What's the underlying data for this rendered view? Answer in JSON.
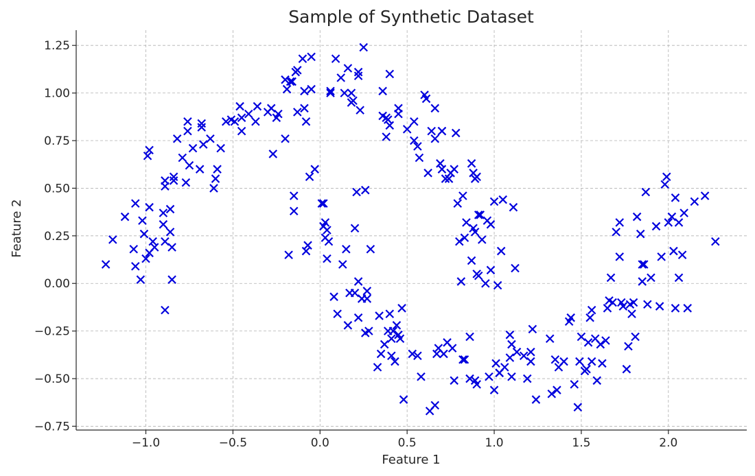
{
  "chart_data": {
    "type": "scatter",
    "title": "Sample of Synthetic Dataset",
    "xlabel": "Feature 1",
    "ylabel": "Feature 2",
    "xlim": [
      -1.4,
      2.45
    ],
    "ylim": [
      -0.77,
      1.33
    ],
    "x_ticks": [
      -1.0,
      -0.5,
      0.0,
      0.5,
      1.0,
      1.5,
      2.0
    ],
    "x_tick_labels": [
      "−1.0",
      "−0.5",
      "0.0",
      "0.5",
      "1.0",
      "1.5",
      "2.0"
    ],
    "y_ticks": [
      -0.75,
      -0.5,
      -0.25,
      0.0,
      0.25,
      0.5,
      0.75,
      1.0,
      1.25
    ],
    "y_tick_labels": [
      "−0.75",
      "−0.50",
      "−0.25",
      "0.00",
      "0.25",
      "0.50",
      "0.75",
      "1.00",
      "1.25"
    ],
    "grid": true,
    "marker": "x",
    "color": "#0000dd",
    "points": [
      [
        -1.23,
        0.1
      ],
      [
        -1.19,
        0.23
      ],
      [
        -1.12,
        0.35
      ],
      [
        -1.06,
        0.42
      ],
      [
        -1.07,
        0.18
      ],
      [
        -1.06,
        0.09
      ],
      [
        -1.03,
        0.02
      ],
      [
        -1.02,
        0.33
      ],
      [
        -1.01,
        0.26
      ],
      [
        -1.0,
        0.13
      ],
      [
        -0.99,
        0.67
      ],
      [
        -0.98,
        0.7
      ],
      [
        -0.98,
        0.4
      ],
      [
        -0.98,
        0.16
      ],
      [
        -0.96,
        0.22
      ],
      [
        -0.95,
        0.19
      ],
      [
        -0.9,
        0.37
      ],
      [
        -0.9,
        0.31
      ],
      [
        -0.89,
        0.51
      ],
      [
        -0.89,
        0.54
      ],
      [
        -0.89,
        0.22
      ],
      [
        -0.89,
        -0.14
      ],
      [
        -0.86,
        0.39
      ],
      [
        -0.86,
        0.27
      ],
      [
        -0.85,
        0.19
      ],
      [
        -0.85,
        0.02
      ],
      [
        -0.84,
        0.56
      ],
      [
        -0.84,
        0.54
      ],
      [
        -0.82,
        0.76
      ],
      [
        -0.79,
        0.66
      ],
      [
        -0.77,
        0.53
      ],
      [
        -0.76,
        0.85
      ],
      [
        -0.76,
        0.8
      ],
      [
        -0.75,
        0.62
      ],
      [
        -0.73,
        0.71
      ],
      [
        -0.69,
        0.6
      ],
      [
        -0.68,
        0.84
      ],
      [
        -0.68,
        0.82
      ],
      [
        -0.67,
        0.73
      ],
      [
        -0.63,
        0.76
      ],
      [
        -0.61,
        0.5
      ],
      [
        -0.6,
        0.55
      ],
      [
        -0.59,
        0.6
      ],
      [
        -0.57,
        0.71
      ],
      [
        -0.54,
        0.85
      ],
      [
        -0.51,
        0.86
      ],
      [
        -0.49,
        0.85
      ],
      [
        -0.46,
        0.93
      ],
      [
        -0.45,
        0.8
      ],
      [
        -0.45,
        0.87
      ],
      [
        -0.41,
        0.89
      ],
      [
        -0.37,
        0.85
      ],
      [
        -0.36,
        0.93
      ],
      [
        -0.3,
        0.9
      ],
      [
        -0.28,
        0.92
      ],
      [
        -0.27,
        0.68
      ],
      [
        -0.25,
        0.87
      ],
      [
        -0.24,
        0.89
      ],
      [
        -0.2,
        0.76
      ],
      [
        -0.2,
        1.07
      ],
      [
        -0.19,
        1.02
      ],
      [
        -0.17,
        1.06
      ],
      [
        -0.16,
        1.06
      ],
      [
        -0.15,
        0.46
      ],
      [
        -0.15,
        0.38
      ],
      [
        -0.14,
        1.11
      ],
      [
        -0.13,
        1.12
      ],
      [
        -0.13,
        0.9
      ],
      [
        -0.18,
        0.15
      ],
      [
        -0.1,
        1.18
      ],
      [
        -0.09,
        0.92
      ],
      [
        -0.08,
        0.85
      ],
      [
        -0.09,
        1.01
      ],
      [
        -0.08,
        0.17
      ],
      [
        -0.07,
        0.2
      ],
      [
        -0.06,
        0.56
      ],
      [
        -0.05,
        1.19
      ],
      [
        -0.05,
        1.02
      ],
      [
        -0.03,
        0.6
      ],
      [
        0.01,
        0.42
      ],
      [
        0.02,
        0.42
      ],
      [
        0.02,
        0.3
      ],
      [
        0.03,
        0.32
      ],
      [
        0.03,
        0.24
      ],
      [
        0.04,
        0.13
      ],
      [
        0.04,
        0.28
      ],
      [
        0.05,
        0.22
      ],
      [
        0.06,
        1.0
      ],
      [
        0.06,
        1.01
      ],
      [
        0.08,
        -0.07
      ],
      [
        0.09,
        1.18
      ],
      [
        0.1,
        -0.16
      ],
      [
        0.12,
        1.08
      ],
      [
        0.13,
        0.1
      ],
      [
        0.14,
        1.0
      ],
      [
        0.15,
        0.18
      ],
      [
        0.16,
        -0.22
      ],
      [
        0.16,
        1.13
      ],
      [
        0.17,
        -0.05
      ],
      [
        0.18,
        0.95
      ],
      [
        0.18,
        1.0
      ],
      [
        0.19,
        0.96
      ],
      [
        0.2,
        0.29
      ],
      [
        0.2,
        -0.05
      ],
      [
        0.21,
        0.48
      ],
      [
        0.22,
        1.09
      ],
      [
        0.22,
        1.11
      ],
      [
        0.22,
        0.01
      ],
      [
        0.22,
        -0.18
      ],
      [
        0.23,
        0.91
      ],
      [
        0.24,
        -0.08
      ],
      [
        0.25,
        1.24
      ],
      [
        0.26,
        0.49
      ],
      [
        0.26,
        -0.26
      ],
      [
        0.27,
        -0.04
      ],
      [
        0.27,
        -0.08
      ],
      [
        0.28,
        -0.25
      ],
      [
        0.29,
        0.18
      ],
      [
        0.33,
        -0.44
      ],
      [
        0.34,
        -0.17
      ],
      [
        0.35,
        -0.37
      ],
      [
        0.36,
        1.01
      ],
      [
        0.36,
        0.88
      ],
      [
        0.37,
        -0.32
      ],
      [
        0.38,
        0.87
      ],
      [
        0.38,
        0.77
      ],
      [
        0.39,
        0.86
      ],
      [
        0.39,
        -0.25
      ],
      [
        0.4,
        0.83
      ],
      [
        0.4,
        1.1
      ],
      [
        0.4,
        -0.16
      ],
      [
        0.41,
        -0.29
      ],
      [
        0.41,
        -0.38
      ],
      [
        0.42,
        -0.25
      ],
      [
        0.43,
        -0.41
      ],
      [
        0.44,
        -0.22
      ],
      [
        0.45,
        0.92
      ],
      [
        0.45,
        0.89
      ],
      [
        0.45,
        -0.27
      ],
      [
        0.46,
        -0.29
      ],
      [
        0.47,
        -0.13
      ],
      [
        0.48,
        -0.61
      ],
      [
        0.5,
        0.81
      ],
      [
        0.53,
        -0.37
      ],
      [
        0.54,
        0.75
      ],
      [
        0.54,
        0.85
      ],
      [
        0.56,
        -0.38
      ],
      [
        0.56,
        0.72
      ],
      [
        0.57,
        0.66
      ],
      [
        0.58,
        -0.49
      ],
      [
        0.6,
        0.99
      ],
      [
        0.61,
        0.97
      ],
      [
        0.62,
        0.58
      ],
      [
        0.63,
        -0.67
      ],
      [
        0.64,
        0.8
      ],
      [
        0.66,
        0.92
      ],
      [
        0.66,
        -0.64
      ],
      [
        0.66,
        0.76
      ],
      [
        0.67,
        -0.37
      ],
      [
        0.68,
        -0.34
      ],
      [
        0.69,
        0.63
      ],
      [
        0.7,
        0.8
      ],
      [
        0.7,
        0.8
      ],
      [
        0.7,
        0.6
      ],
      [
        0.71,
        -0.37
      ],
      [
        0.72,
        0.55
      ],
      [
        0.73,
        -0.31
      ],
      [
        0.74,
        0.55
      ],
      [
        0.75,
        0.58
      ],
      [
        0.76,
        -0.34
      ],
      [
        0.77,
        0.6
      ],
      [
        0.77,
        -0.51
      ],
      [
        0.78,
        0.79
      ],
      [
        0.79,
        0.42
      ],
      [
        0.8,
        0.22
      ],
      [
        0.81,
        0.01
      ],
      [
        0.82,
        0.46
      ],
      [
        0.82,
        -0.4
      ],
      [
        0.83,
        0.24
      ],
      [
        0.83,
        -0.4
      ],
      [
        0.84,
        0.32
      ],
      [
        0.86,
        -0.28
      ],
      [
        0.86,
        -0.5
      ],
      [
        0.87,
        0.12
      ],
      [
        0.87,
        0.63
      ],
      [
        0.88,
        0.29
      ],
      [
        0.88,
        0.58
      ],
      [
        0.89,
        0.55
      ],
      [
        0.89,
        0.27
      ],
      [
        0.89,
        -0.51
      ],
      [
        0.9,
        0.56
      ],
      [
        0.9,
        0.05
      ],
      [
        0.9,
        -0.53
      ],
      [
        0.91,
        0.04
      ],
      [
        0.91,
        0.36
      ],
      [
        0.92,
        0.36
      ],
      [
        0.93,
        0.23
      ],
      [
        0.95,
        0.0
      ],
      [
        0.96,
        0.33
      ],
      [
        0.97,
        -0.49
      ],
      [
        0.98,
        0.31
      ],
      [
        0.98,
        0.07
      ],
      [
        1.0,
        0.43
      ],
      [
        1.0,
        -0.56
      ],
      [
        1.01,
        -0.42
      ],
      [
        1.02,
        -0.01
      ],
      [
        1.03,
        -0.47
      ],
      [
        1.03,
        -0.47
      ],
      [
        1.04,
        0.17
      ],
      [
        1.05,
        0.44
      ],
      [
        1.06,
        -0.44
      ],
      [
        1.09,
        -0.27
      ],
      [
        1.09,
        -0.39
      ],
      [
        1.1,
        -0.49
      ],
      [
        1.1,
        -0.32
      ],
      [
        1.11,
        0.4
      ],
      [
        1.12,
        0.08
      ],
      [
        1.13,
        -0.36
      ],
      [
        1.17,
        -0.38
      ],
      [
        1.19,
        -0.5
      ],
      [
        1.21,
        -0.41
      ],
      [
        1.21,
        -0.36
      ],
      [
        1.22,
        -0.24
      ],
      [
        1.24,
        -0.61
      ],
      [
        1.32,
        -0.29
      ],
      [
        1.33,
        -0.58
      ],
      [
        1.35,
        -0.4
      ],
      [
        1.36,
        -0.56
      ],
      [
        1.37,
        -0.44
      ],
      [
        1.4,
        -0.41
      ],
      [
        1.43,
        -0.2
      ],
      [
        1.44,
        -0.18
      ],
      [
        1.46,
        -0.53
      ],
      [
        1.48,
        -0.65
      ],
      [
        1.49,
        -0.41
      ],
      [
        1.5,
        -0.28
      ],
      [
        1.52,
        -0.46
      ],
      [
        1.53,
        -0.45
      ],
      [
        1.54,
        -0.31
      ],
      [
        1.55,
        -0.18
      ],
      [
        1.56,
        -0.14
      ],
      [
        1.56,
        -0.41
      ],
      [
        1.58,
        -0.29
      ],
      [
        1.59,
        -0.51
      ],
      [
        1.61,
        -0.32
      ],
      [
        1.62,
        -0.42
      ],
      [
        1.64,
        -0.3
      ],
      [
        1.65,
        -0.13
      ],
      [
        1.66,
        -0.09
      ],
      [
        1.67,
        0.03
      ],
      [
        1.68,
        -0.1
      ],
      [
        1.7,
        0.27
      ],
      [
        1.72,
        0.14
      ],
      [
        1.72,
        0.32
      ],
      [
        1.73,
        -0.1
      ],
      [
        1.74,
        -0.12
      ],
      [
        1.76,
        -0.45
      ],
      [
        1.77,
        -0.33
      ],
      [
        1.78,
        -0.11
      ],
      [
        1.79,
        -0.16
      ],
      [
        1.8,
        -0.1
      ],
      [
        1.81,
        -0.28
      ],
      [
        1.82,
        0.35
      ],
      [
        1.84,
        0.26
      ],
      [
        1.85,
        0.1
      ],
      [
        1.85,
        0.01
      ],
      [
        1.86,
        0.1
      ],
      [
        1.87,
        0.48
      ],
      [
        1.88,
        -0.11
      ],
      [
        1.9,
        0.03
      ],
      [
        1.93,
        0.3
      ],
      [
        1.95,
        -0.12
      ],
      [
        1.96,
        0.14
      ],
      [
        1.98,
        0.52
      ],
      [
        1.99,
        0.56
      ],
      [
        2.0,
        0.32
      ],
      [
        2.02,
        0.35
      ],
      [
        2.03,
        0.17
      ],
      [
        2.04,
        -0.13
      ],
      [
        2.04,
        0.45
      ],
      [
        2.06,
        0.32
      ],
      [
        2.06,
        0.03
      ],
      [
        2.08,
        0.15
      ],
      [
        2.09,
        0.37
      ],
      [
        2.11,
        -0.13
      ],
      [
        2.15,
        0.43
      ],
      [
        2.21,
        0.46
      ],
      [
        2.27,
        0.22
      ]
    ]
  }
}
